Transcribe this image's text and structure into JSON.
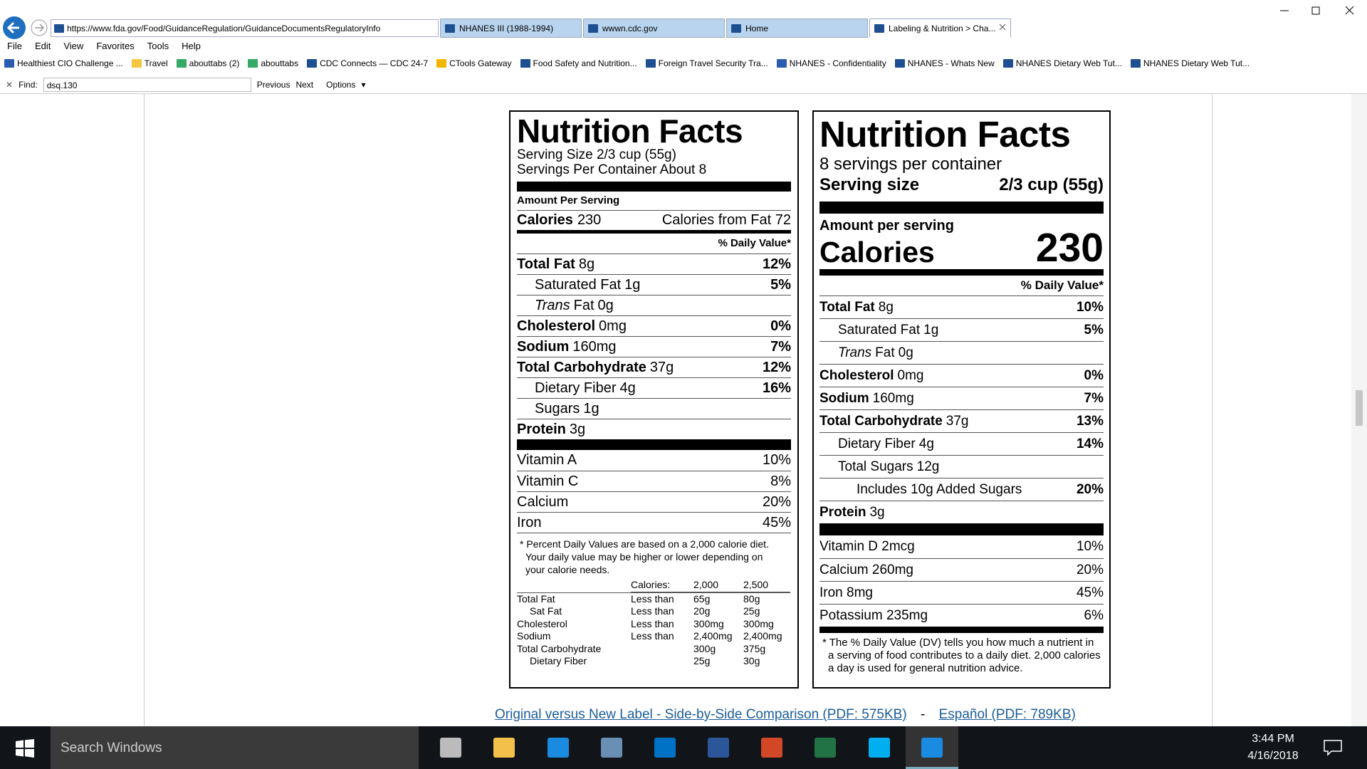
{
  "browser": {
    "url": "https://www.fda.gov/Food/GuidanceRegulation/GuidanceDocumentsRegulatoryInfo",
    "tabs": [
      "NHANES III (1988-1994)",
      "wwwn.cdc.gov",
      "Home",
      "Labeling & Nutrition > Cha..."
    ],
    "menu": [
      "File",
      "Edit",
      "View",
      "Favorites",
      "Tools",
      "Help"
    ],
    "favorites": [
      "Healthiest CIO Challenge ...",
      "Travel",
      "abouttabs (2)",
      "abouttabs",
      "CDC Connects — CDC 24-7",
      "CTools Gateway",
      "Food Safety and Nutrition...",
      "Foreign Travel Security Tra...",
      "NHANES - Confidentiality",
      "NHANES - Whats New",
      "NHANES Dietary Web Tut...",
      "NHANES Dietary Web Tut..."
    ],
    "find": {
      "label": "Find:",
      "query": "dsq.130",
      "previous": "Previous",
      "next": "Next",
      "options": "Options"
    }
  },
  "original_label": {
    "title": "Nutrition Facts",
    "serving_size": "Serving Size 2/3 cup (55g)",
    "servings": "Servings Per Container About 8",
    "amount_per_serving": "Amount Per Serving",
    "calories_label": "Calories",
    "calories": "230",
    "calories_from_fat": "Calories from Fat 72",
    "dv_header": "% Daily Value*",
    "nutrients": [
      {
        "name": "Total Fat",
        "amount": "8g",
        "dv": "12%",
        "sub": [
          {
            "name": "Saturated Fat",
            "amount": "1g",
            "dv": "5%"
          },
          {
            "italic": "Trans",
            "name": "Fat",
            "amount": "0g"
          }
        ]
      },
      {
        "name": "Cholesterol",
        "amount": "0mg",
        "dv": "0%"
      },
      {
        "name": "Sodium",
        "amount": "160mg",
        "dv": "7%"
      },
      {
        "name": "Total Carbohydrate",
        "amount": "37g",
        "dv": "12%",
        "sub": [
          {
            "name": "Dietary Fiber",
            "amount": "4g",
            "dv": "16%"
          },
          {
            "name": "Sugars",
            "amount": "1g"
          }
        ]
      },
      {
        "name": "Protein",
        "amount": "3g"
      }
    ],
    "vitamins": [
      {
        "name": "Vitamin A",
        "dv": "10%"
      },
      {
        "name": "Vitamin C",
        "dv": "8%"
      },
      {
        "name": "Calcium",
        "dv": "20%"
      },
      {
        "name": "Iron",
        "dv": "45%"
      }
    ],
    "footnote": "* Percent Daily Values are based on a 2,000 calorie diet. Your daily value may be higher or lower depending on your calorie needs.",
    "table": {
      "header": {
        "label": "Calories:",
        "cols": [
          "2,000",
          "2,500"
        ]
      },
      "rows": [
        {
          "name": "Total Fat",
          "qualifier": "Less than",
          "values": [
            "65g",
            "80g"
          ],
          "sub": [
            {
              "name": "Sat Fat",
              "qualifier": "Less than",
              "values": [
                "20g",
                "25g"
              ]
            }
          ]
        },
        {
          "name": "Cholesterol",
          "qualifier": "Less than",
          "values": [
            "300mg",
            "300mg"
          ]
        },
        {
          "name": "Sodium",
          "qualifier": "Less than",
          "values": [
            "2,400mg",
            "2,400mg"
          ]
        },
        {
          "name": "Total Carbohydrate",
          "values": [
            "300g",
            "375g"
          ],
          "sub": [
            {
              "name": "Dietary Fiber",
              "values": [
                "25g",
                "30g"
              ]
            }
          ]
        }
      ]
    }
  },
  "new_label": {
    "title": "Nutrition Facts",
    "servings": "8 servings per container",
    "serving_size_label": "Serving size",
    "serving_size": "2/3 cup (55g)",
    "amount_per_serving": "Amount per serving",
    "calories_label": "Calories",
    "calories": "230",
    "dv_header": "% Daily Value*",
    "nutrients": [
      {
        "name": "Total Fat",
        "amount": "8g",
        "dv": "10%",
        "sub": [
          {
            "name": "Saturated Fat",
            "amount": "1g",
            "dv": "5%"
          },
          {
            "italic": "Trans",
            "name": "Fat",
            "amount": "0g"
          }
        ]
      },
      {
        "name": "Cholesterol",
        "amount": "0mg",
        "dv": "0%"
      },
      {
        "name": "Sodium",
        "amount": "160mg",
        "dv": "7%"
      },
      {
        "name": "Total Carbohydrate",
        "amount": "37g",
        "dv": "13%",
        "sub": [
          {
            "name": "Dietary Fiber",
            "amount": "4g",
            "dv": "14%"
          },
          {
            "name": "Total Sugars",
            "amount": "12g",
            "sub": [
              {
                "name": "Includes 10g Added Sugars",
                "dv": "20%"
              }
            ]
          }
        ]
      },
      {
        "name": "Protein",
        "amount": "3g"
      }
    ],
    "vitamins": [
      {
        "name": "Vitamin D 2mcg",
        "dv": "10%"
      },
      {
        "name": "Calcium 260mg",
        "dv": "20%"
      },
      {
        "name": "Iron 8mg",
        "dv": "45%"
      },
      {
        "name": "Potassium 235mg",
        "dv": "6%"
      }
    ],
    "footnote": "* The % Daily Value (DV) tells you how much a nutrient in a serving of food contributes to a daily diet. 2,000 calories a day is used for general nutrition advice."
  },
  "links": {
    "comparison": "Original versus New Label - Side-by-Side Comparison (PDF: 575KB)",
    "separator": "-",
    "spanish": "Español (PDF: 789KB)"
  },
  "taskbar": {
    "search": "Search Windows",
    "time": "3:44 PM",
    "date": "4/16/2018"
  }
}
